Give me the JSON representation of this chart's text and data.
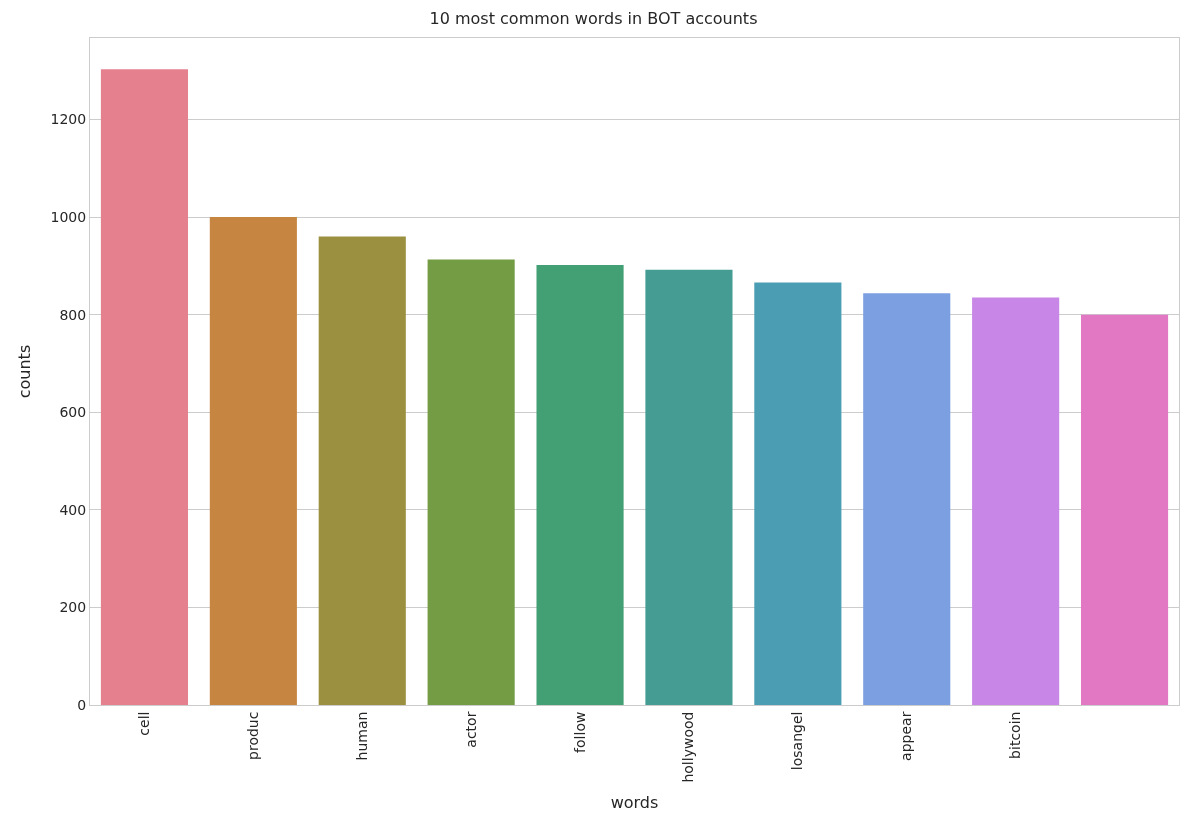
{
  "chart_data": {
    "type": "bar",
    "title": "10 most common words in BOT accounts",
    "xlabel": "words",
    "ylabel": "counts",
    "categories": [
      "cell",
      "produc",
      "human",
      "actor",
      "follow",
      "hollywood",
      "losangel",
      "appear",
      "bitcoin",
      null
    ],
    "values": [
      1303,
      1000,
      960,
      913,
      902,
      892,
      866,
      844,
      835,
      800
    ],
    "colors": [
      "#e5808e",
      "#c68642",
      "#9b9040",
      "#749c44",
      "#42a074",
      "#449c93",
      "#4a9db2",
      "#7c9fe2",
      "#c886e6",
      "#e278c4"
    ],
    "ylim": [
      0,
      1367
    ],
    "yticks": [
      0,
      200,
      400,
      600,
      800,
      1000,
      1200
    ],
    "grid": "y"
  }
}
